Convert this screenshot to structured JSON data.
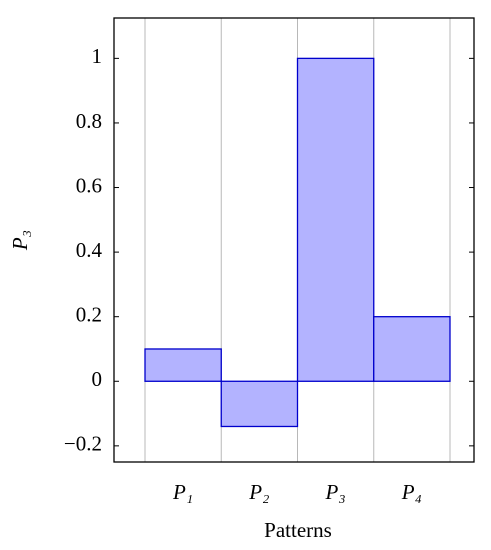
{
  "chart_data": {
    "type": "bar",
    "x_label": "Patterns",
    "y_label": "P₃",
    "categories": [
      "P₁",
      "P₂",
      "P₃",
      "P₄"
    ],
    "values": [
      0.1,
      -0.14,
      1,
      0.2
    ],
    "color": "#b3b3ff",
    "edge_color": "#0000cc",
    "ylim": [
      -0.25,
      1.125
    ],
    "yticks": [
      {
        "value": -0.2,
        "label": "−0.2"
      },
      0,
      0.2,
      0.4,
      0.6,
      0.8,
      1
    ],
    "grid": true
  }
}
